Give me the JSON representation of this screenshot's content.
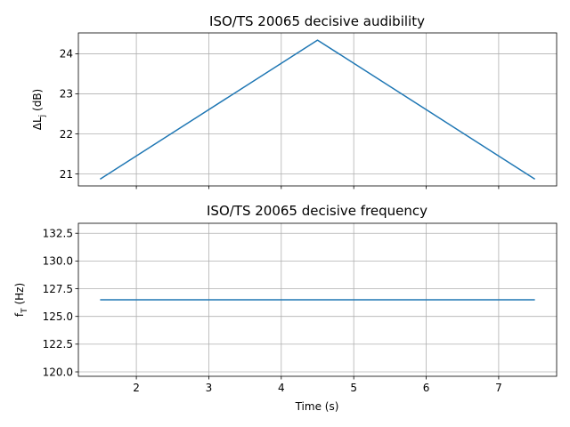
{
  "chart_data": [
    {
      "type": "line",
      "title": "ISO/TS 20065 decisive audibility",
      "ylabel": "ΔL",
      "ylabel_subscript": "j",
      "ylabel_unit": " (dB)",
      "xlabel": "",
      "x": [
        1.5,
        4.5,
        7.5
      ],
      "series": [
        {
          "values": [
            20.87,
            24.34,
            20.87
          ]
        }
      ],
      "xlim": [
        1.2,
        7.8
      ],
      "ylim": [
        20.7,
        24.52
      ],
      "xticks": [
        2,
        3,
        4,
        5,
        6,
        7
      ],
      "xtick_labels_visible": false,
      "yticks": [
        21,
        22,
        23,
        24
      ],
      "ytick_labels": [
        "21",
        "22",
        "23",
        "24"
      ],
      "grid": true,
      "color": "#1f77b4"
    },
    {
      "type": "line",
      "title": "ISO/TS 20065 decisive frequency",
      "ylabel": "f",
      "ylabel_subscript": "T",
      "ylabel_unit": " (Hz)",
      "xlabel": "Time (s)",
      "x": [
        1.5,
        7.5
      ],
      "series": [
        {
          "values": [
            126.5,
            126.5
          ]
        }
      ],
      "xlim": [
        1.2,
        7.8
      ],
      "ylim": [
        119.6,
        133.4
      ],
      "xticks": [
        2,
        3,
        4,
        5,
        6,
        7
      ],
      "xtick_labels": [
        "2",
        "3",
        "4",
        "5",
        "6",
        "7"
      ],
      "xtick_labels_visible": true,
      "yticks": [
        120.0,
        122.5,
        125.0,
        127.5,
        130.0,
        132.5
      ],
      "ytick_labels": [
        "120.0",
        "122.5",
        "125.0",
        "127.5",
        "130.0",
        "132.5"
      ],
      "grid": true,
      "color": "#1f77b4"
    }
  ]
}
